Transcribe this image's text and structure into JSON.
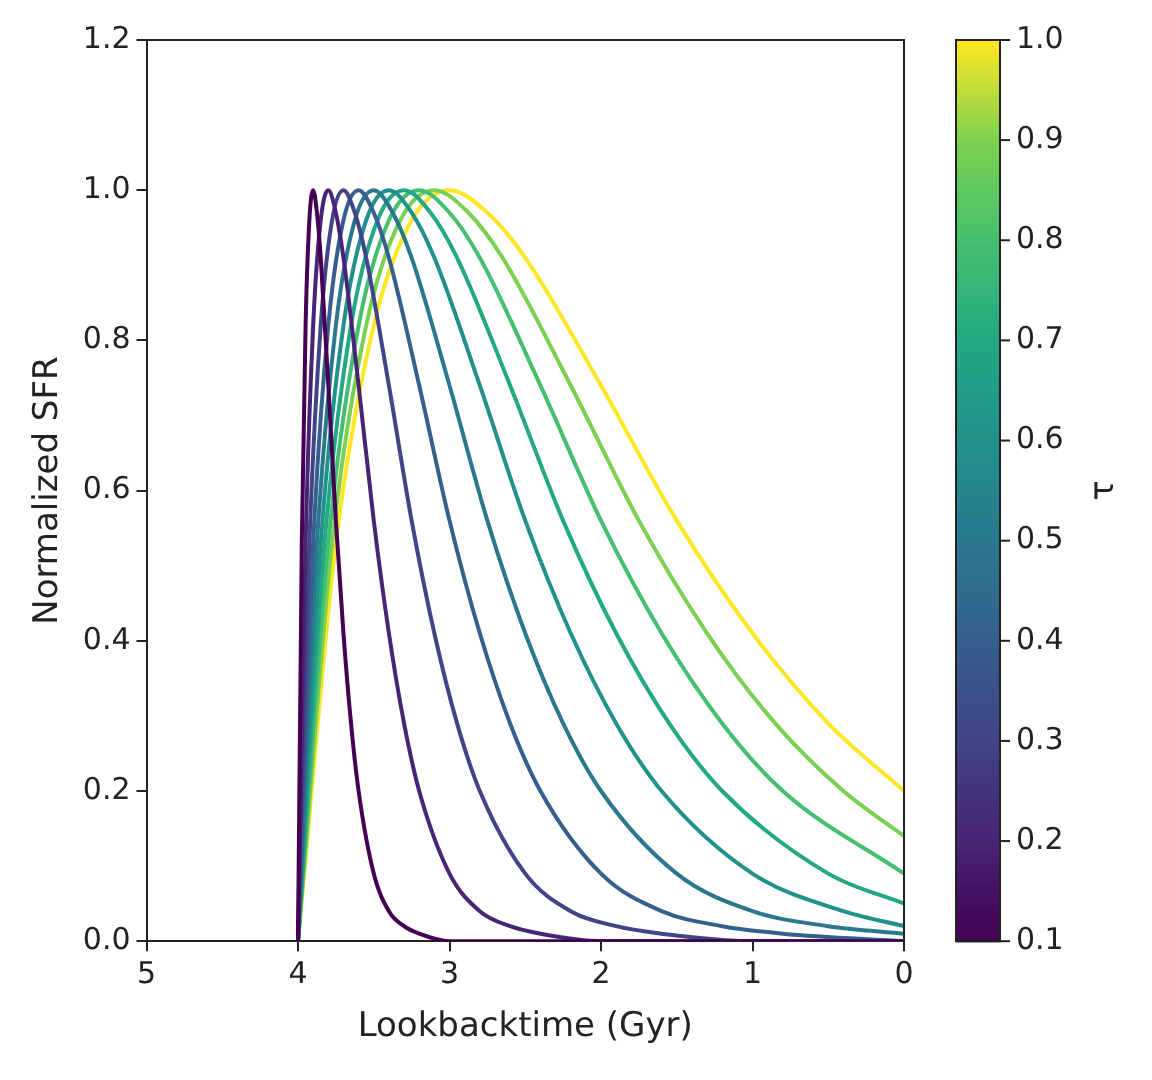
{
  "chart_data": {
    "type": "line",
    "xlabel": "Lookbacktime (Gyr)",
    "ylabel": "Normalized SFR",
    "clabel": "τ",
    "xlim": [
      5,
      0
    ],
    "xticks": [
      5,
      4,
      3,
      2,
      1,
      0
    ],
    "ylim": [
      0,
      1.2
    ],
    "yticks": [
      {
        "value": 0,
        "label": "0.0"
      },
      0.2,
      0.4,
      0.6,
      0.8,
      {
        "value": 1,
        "label": "1.0"
      },
      {
        "value": 1.2,
        "label": "1.2"
      }
    ],
    "clim": [
      0.1,
      1.0
    ],
    "cticks": [
      0.1,
      0.2,
      0.3,
      0.4,
      0.5,
      0.6,
      0.7,
      0.8,
      0.9,
      {
        "value": 1.0,
        "label": "1.0"
      }
    ],
    "grid": false,
    "legend": false,
    "series": [
      {
        "color": "#440154",
        "x": [
          4,
          3.975,
          3.95,
          3.925,
          3.9,
          3.875,
          3.85,
          3.8,
          3.75,
          3.7,
          3.65,
          3.6,
          3.5,
          3.4,
          3.3,
          3.2,
          3.0,
          0
        ],
        "values": [
          0,
          0.53,
          0.82,
          0.96,
          1,
          0.97,
          0.91,
          0.74,
          0.56,
          0.41,
          0.29,
          0.2,
          0.09,
          0.04,
          0.02,
          0.01,
          0,
          0
        ]
      },
      {
        "color": "#482475",
        "x": [
          4,
          3.95,
          3.9,
          3.85,
          3.8,
          3.75,
          3.7,
          3.6,
          3.5,
          3.4,
          3.3,
          3.2,
          3.0,
          2.8,
          2.6,
          2.4,
          2.0,
          0
        ],
        "values": [
          0,
          0.53,
          0.82,
          0.96,
          1,
          0.97,
          0.91,
          0.74,
          0.56,
          0.41,
          0.29,
          0.2,
          0.09,
          0.04,
          0.02,
          0.01,
          0,
          0
        ]
      },
      {
        "color": "#414487",
        "x": [
          4,
          3.925,
          3.85,
          3.775,
          3.7,
          3.625,
          3.55,
          3.4,
          3.25,
          3.1,
          2.95,
          2.8,
          2.5,
          2.2,
          1.9,
          1.6,
          1.0,
          0
        ],
        "values": [
          0,
          0.53,
          0.82,
          0.96,
          1,
          0.97,
          0.91,
          0.74,
          0.56,
          0.41,
          0.29,
          0.2,
          0.09,
          0.04,
          0.02,
          0.01,
          0,
          0
        ]
      },
      {
        "color": "#355f8d",
        "x": [
          4,
          3.9,
          3.8,
          3.7,
          3.6,
          3.5,
          3.4,
          3.2,
          3.0,
          2.8,
          2.6,
          2.4,
          2.0,
          1.6,
          1.2,
          0.8,
          0
        ],
        "values": [
          0,
          0.53,
          0.82,
          0.96,
          1,
          0.97,
          0.91,
          0.74,
          0.56,
          0.41,
          0.29,
          0.2,
          0.09,
          0.04,
          0.02,
          0.01,
          0
        ]
      },
      {
        "color": "#2a788e",
        "x": [
          4,
          3.875,
          3.75,
          3.625,
          3.5,
          3.375,
          3.25,
          3.0,
          2.75,
          2.5,
          2.25,
          2.0,
          1.5,
          1.0,
          0.5,
          0
        ],
        "values": [
          0,
          0.53,
          0.82,
          0.96,
          1,
          0.97,
          0.91,
          0.74,
          0.56,
          0.41,
          0.29,
          0.2,
          0.09,
          0.04,
          0.02,
          0.01
        ]
      },
      {
        "color": "#21918c",
        "x": [
          4,
          3.85,
          3.7,
          3.55,
          3.4,
          3.25,
          3.1,
          2.8,
          2.5,
          2.2,
          1.9,
          1.6,
          1.0,
          0.4,
          0
        ],
        "values": [
          0,
          0.53,
          0.82,
          0.96,
          1,
          0.97,
          0.91,
          0.74,
          0.56,
          0.41,
          0.29,
          0.2,
          0.09,
          0.04,
          0.02
        ]
      },
      {
        "color": "#22a884",
        "x": [
          4,
          3.825,
          3.65,
          3.475,
          3.3,
          3.125,
          2.95,
          2.6,
          2.25,
          1.9,
          1.55,
          1.2,
          0.5,
          0
        ],
        "values": [
          0,
          0.53,
          0.82,
          0.96,
          1,
          0.97,
          0.91,
          0.74,
          0.56,
          0.41,
          0.29,
          0.2,
          0.09,
          0.05
        ]
      },
      {
        "color": "#44bf70",
        "x": [
          4,
          3.8,
          3.6,
          3.4,
          3.2,
          3.0,
          2.8,
          2.4,
          2.0,
          1.6,
          1.2,
          0.8,
          0
        ],
        "values": [
          0,
          0.53,
          0.82,
          0.96,
          1,
          0.97,
          0.91,
          0.74,
          0.56,
          0.41,
          0.29,
          0.2,
          0.09
        ]
      },
      {
        "color": "#7ad151",
        "x": [
          4,
          3.775,
          3.55,
          3.325,
          3.1,
          2.875,
          2.65,
          2.2,
          1.75,
          1.3,
          0.85,
          0.4,
          0
        ],
        "values": [
          0,
          0.53,
          0.82,
          0.96,
          1,
          0.97,
          0.91,
          0.74,
          0.56,
          0.41,
          0.29,
          0.2,
          0.14
        ]
      },
      {
        "color": "#fde725",
        "x": [
          4,
          3.75,
          3.5,
          3.25,
          3.0,
          2.75,
          2.5,
          2.0,
          1.5,
          1.0,
          0.5,
          0
        ],
        "values": [
          0,
          0.53,
          0.82,
          0.96,
          1,
          0.97,
          0.91,
          0.74,
          0.56,
          0.41,
          0.29,
          0.2
        ]
      }
    ]
  }
}
